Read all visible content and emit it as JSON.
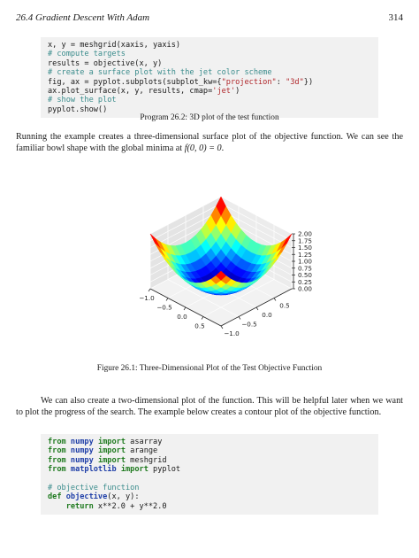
{
  "header": {
    "title": "26.4 Gradient Descent With Adam",
    "page_number": "314"
  },
  "code_block_1": {
    "lines": [
      [
        {
          "t": "x, y = meshgrid(xaxis, yaxis)",
          "c": ""
        }
      ],
      [
        {
          "t": "# compute targets",
          "c": "cm"
        }
      ],
      [
        {
          "t": "results = objective(x, y)",
          "c": ""
        }
      ],
      [
        {
          "t": "# create a surface plot with the jet color scheme",
          "c": "cm"
        }
      ],
      [
        {
          "t": "fig, ax = pyplot.subplots(subplot_kw={",
          "c": ""
        },
        {
          "t": "\"projection\"",
          "c": "str"
        },
        {
          "t": ": ",
          "c": ""
        },
        {
          "t": "\"3d\"",
          "c": "str"
        },
        {
          "t": "})",
          "c": ""
        }
      ],
      [
        {
          "t": "ax.plot_surface(x, y, results, cmap=",
          "c": ""
        },
        {
          "t": "'jet'",
          "c": "str"
        },
        {
          "t": ")",
          "c": ""
        }
      ],
      [
        {
          "t": "# show the plot",
          "c": "cm"
        }
      ],
      [
        {
          "t": "pyplot.show()",
          "c": ""
        }
      ]
    ]
  },
  "program_caption": "Program 26.2: 3D plot of the test function",
  "paragraph_1": {
    "text_before": "Running the example creates a three-dimensional surface plot of the objective function. We can see the familiar bowl shape with the global minima at ",
    "math": "f(0, 0) = 0",
    "text_after": "."
  },
  "figure_caption": "Figure 26.1: Three-Dimensional Plot of the Test Objective Function",
  "paragraph_2": "We can also create a two-dimensional plot of the function. This will be helpful later when we want to plot the progress of the search. The example below creates a contour plot of the objective function.",
  "code_block_2": {
    "lines": [
      [
        {
          "t": "from",
          "c": "kw"
        },
        {
          "t": " ",
          "c": ""
        },
        {
          "t": "numpy",
          "c": "mod"
        },
        {
          "t": " ",
          "c": ""
        },
        {
          "t": "import",
          "c": "kw"
        },
        {
          "t": " asarray",
          "c": ""
        }
      ],
      [
        {
          "t": "from",
          "c": "kw"
        },
        {
          "t": " ",
          "c": ""
        },
        {
          "t": "numpy",
          "c": "mod"
        },
        {
          "t": " ",
          "c": ""
        },
        {
          "t": "import",
          "c": "kw"
        },
        {
          "t": " arange",
          "c": ""
        }
      ],
      [
        {
          "t": "from",
          "c": "kw"
        },
        {
          "t": " ",
          "c": ""
        },
        {
          "t": "numpy",
          "c": "mod"
        },
        {
          "t": " ",
          "c": ""
        },
        {
          "t": "import",
          "c": "kw"
        },
        {
          "t": " meshgrid",
          "c": ""
        }
      ],
      [
        {
          "t": "from",
          "c": "kw"
        },
        {
          "t": " ",
          "c": ""
        },
        {
          "t": "matplotlib",
          "c": "mod"
        },
        {
          "t": " ",
          "c": ""
        },
        {
          "t": "import",
          "c": "kw"
        },
        {
          "t": " pyplot",
          "c": ""
        }
      ],
      [
        {
          "t": "",
          "c": ""
        }
      ],
      [
        {
          "t": "# objective function",
          "c": "cm"
        }
      ],
      [
        {
          "t": "def",
          "c": "kw"
        },
        {
          "t": " ",
          "c": ""
        },
        {
          "t": "objective",
          "c": "mod"
        },
        {
          "t": "(x, y):",
          "c": ""
        }
      ],
      [
        {
          "t": "    ",
          "c": ""
        },
        {
          "t": "return",
          "c": "kw"
        },
        {
          "t": " x**2.0 + y**2.0",
          "c": ""
        }
      ]
    ]
  },
  "chart_data": {
    "type": "surface3d",
    "function": "x**2.0 + y**2.0",
    "colormap": "jet",
    "x_range": [
      -1.0,
      1.0
    ],
    "y_range": [
      -1.0,
      1.0
    ],
    "z_range": [
      0.0,
      2.0
    ],
    "x_ticks": [
      "−1.0",
      "−0.5",
      "0.0",
      "0.5"
    ],
    "y_ticks": [
      "0.5",
      "0.0",
      "−0.5",
      "−1.0"
    ],
    "z_ticks": [
      "2.00",
      "1.75",
      "1.50",
      "1.25",
      "1.00",
      "0.75",
      "0.50",
      "0.25",
      "0.00"
    ],
    "grid": true
  }
}
